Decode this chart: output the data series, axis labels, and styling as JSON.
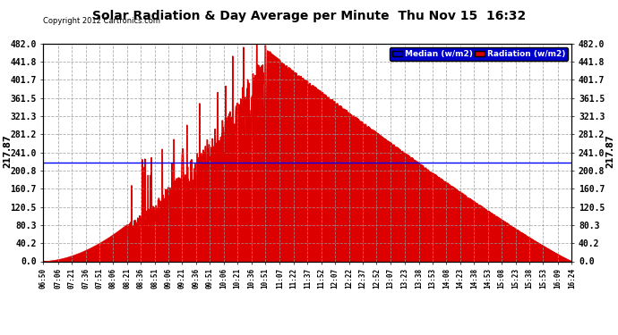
{
  "title": "Solar Radiation & Day Average per Minute  Thu Nov 15  16:32",
  "copyright": "Copyright 2012 Cartronics.com",
  "legend_median_label": "Median (w/m2)",
  "legend_radiation_label": "Radiation (w/m2)",
  "median_value": 217.87,
  "median_line_color": "#0000ff",
  "ymax": 482.0,
  "ymin": 0.0,
  "ytick_labels": [
    "0.0",
    "40.2",
    "80.3",
    "120.5",
    "160.7",
    "200.8",
    "241.0",
    "281.2",
    "321.3",
    "361.5",
    "401.7",
    "441.8",
    "482.0"
  ],
  "ytick_values": [
    0.0,
    40.2,
    80.3,
    120.5,
    160.7,
    200.8,
    241.0,
    281.2,
    321.3,
    361.5,
    401.7,
    441.8,
    482.0
  ],
  "background_color": "#ffffff",
  "plot_bg_color": "#ffffff",
  "fill_color": "#dd0000",
  "grid_color": "#999999",
  "title_fontsize": 11,
  "x_time_labels": [
    "06:50",
    "07:06",
    "07:21",
    "07:36",
    "07:51",
    "08:06",
    "08:21",
    "08:36",
    "08:51",
    "09:06",
    "09:21",
    "09:36",
    "09:51",
    "10:06",
    "10:21",
    "10:36",
    "10:51",
    "11:07",
    "11:22",
    "11:37",
    "11:52",
    "12:07",
    "12:22",
    "12:37",
    "12:52",
    "13:07",
    "13:23",
    "13:38",
    "13:53",
    "14:08",
    "14:23",
    "14:38",
    "14:53",
    "15:08",
    "15:23",
    "15:38",
    "15:53",
    "16:09",
    "16:24"
  ]
}
